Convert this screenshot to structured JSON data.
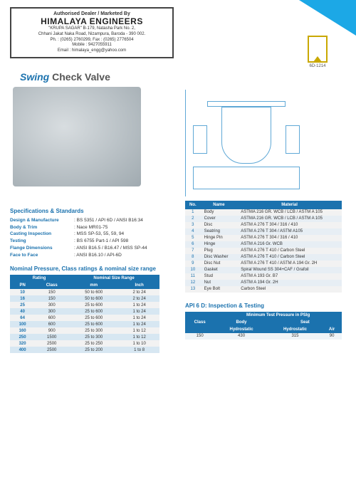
{
  "dealer": {
    "sub": "Authorised Dealer / Marketed By",
    "name": "HIMALAYA ENGINEERS",
    "addr1": "\"KRUPA SAGAR\" B-179, Natasha Park No. 2,",
    "addr2": "Chhani Jakat Naka Road, Nizampura, Baroda - 390 002.",
    "ph": "Ph. : (0265) 2760299, Fax : (0265) 2776504",
    "mob": "Mobile : 9427055911",
    "email": "Email : himalaya_engg@yahoo.com"
  },
  "cert": {
    "code": "6D-1214"
  },
  "title": {
    "swing": "Swing",
    "check": "Check Valve"
  },
  "specs": {
    "heading": "Specifications & Standards",
    "rows": [
      {
        "label": "Design & Manufacture",
        "val": ": BS 5351 / API 6D / ANSI B16:34"
      },
      {
        "label": "Body & Trim",
        "val": ": Nace MR01-75"
      },
      {
        "label": "Casting Inspection",
        "val": ": MSS SP-53, 55, 59, 94"
      },
      {
        "label": "Testing",
        "val": ": BS 6755 Part-1 / API 598"
      },
      {
        "label": "Flange Dimensions",
        "val": ": ANSI B16.5 / B16.47 / MSS SP-44"
      },
      {
        "label": "Face to Face",
        "val": ": ANSI B16.10 / API-6D"
      }
    ]
  },
  "nominal": {
    "heading": "Nominal Pressure, Class ratings & nominal size range",
    "head": {
      "rating": "Rating",
      "size": "Nominal Size Range",
      "pn": "PN",
      "class": "Class",
      "mm": "mm",
      "inch": "Inch"
    },
    "rows": [
      {
        "pn": "10",
        "class": "150",
        "mm": "50 to 600",
        "inch": "2 to 24"
      },
      {
        "pn": "16",
        "class": "150",
        "mm": "50 to 600",
        "inch": "2 to 24"
      },
      {
        "pn": "25",
        "class": "300",
        "mm": "25 to 600",
        "inch": "1 to 24"
      },
      {
        "pn": "40",
        "class": "300",
        "mm": "25 to 600",
        "inch": "1 to 24"
      },
      {
        "pn": "64",
        "class": "600",
        "mm": "25 to 600",
        "inch": "1 to 24"
      },
      {
        "pn": "100",
        "class": "600",
        "mm": "25 to 600",
        "inch": "1 to 24"
      },
      {
        "pn": "160",
        "class": "900",
        "mm": "25 to 300",
        "inch": "1 to 12"
      },
      {
        "pn": "250",
        "class": "1500",
        "mm": "25 to 300",
        "inch": "1 to 12"
      },
      {
        "pn": "320",
        "class": "2500",
        "mm": "25 to 250",
        "inch": "1 to 10"
      },
      {
        "pn": "400",
        "class": "2500",
        "mm": "25 to 200",
        "inch": "1 to 8"
      }
    ]
  },
  "material": {
    "head": {
      "no": "No.",
      "name": "Name",
      "material": "Material"
    },
    "rows": [
      {
        "no": "1",
        "name": "Body",
        "mat": "ASTMA 216 GR. WCB / LCB / ASTM A 105"
      },
      {
        "no": "2",
        "name": "Cover",
        "mat": "ASTMA 216 GR. WCB / LCB / ASTM A 105"
      },
      {
        "no": "3",
        "name": "Disc",
        "mat": "ASTM A 276 T 304 / 316 / 410"
      },
      {
        "no": "4",
        "name": "Seatring",
        "mat": "ASTM A 276 T 304 / ASTM A105"
      },
      {
        "no": "5",
        "name": "Hinge Pin",
        "mat": "ASTM A 276 T 304 / 316 / 410"
      },
      {
        "no": "6",
        "name": "Hinge",
        "mat": "ASTM A 216 Gr. WCB"
      },
      {
        "no": "7",
        "name": "Plug",
        "mat": "ASTM A 276 T 410 / Carbon Steel"
      },
      {
        "no": "8",
        "name": "Disc Washer",
        "mat": "ASTM A 276 T 410 / Carbon Steel"
      },
      {
        "no": "9",
        "name": "Disc Nut",
        "mat": "ASTM A 276 T 410 / ASTM A 194 Gr. 2H"
      },
      {
        "no": "10",
        "name": "Gasket",
        "mat": "Spiral Wound SS 304+CAF / Grafoil"
      },
      {
        "no": "11",
        "name": "Stud",
        "mat": "ASTM A 193 Gr. B7"
      },
      {
        "no": "12",
        "name": "Nut",
        "mat": "ASTM A 194 Gr. 2H"
      },
      {
        "no": "13",
        "name": "Eye Bolt",
        "mat": "Carbon Steel"
      }
    ]
  },
  "api": {
    "heading": "API 6 D: Inspection & Testing",
    "head": {
      "class": "Class",
      "min": "Minimum Test Pressure in PSIg",
      "body": "Body",
      "seat": "Seat",
      "h1": "Hydrostatic",
      "h2": "Hydrostatic",
      "air": "Air"
    },
    "rows": [
      {
        "class": "150",
        "h1": "430",
        "h2": "315",
        "air": "90"
      }
    ]
  }
}
